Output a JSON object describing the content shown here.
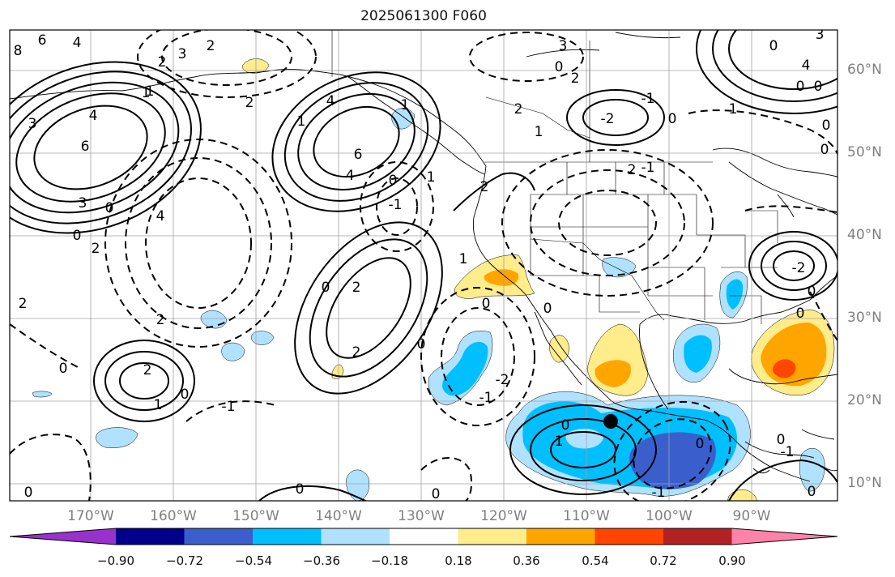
{
  "map": {
    "title": "2025061300 F060",
    "lon_labels": [
      "170°W",
      "160°W",
      "150°W",
      "140°W",
      "130°W",
      "120°W",
      "110°W",
      "100°W",
      "90°W"
    ],
    "lat_labels": [
      "60°N",
      "50°N",
      "40°N",
      "30°N",
      "20°N",
      "10°N"
    ],
    "marker": {
      "label": "",
      "color": "#000000"
    }
  },
  "colorbar": {
    "labels": [
      "−0.90",
      "−0.72",
      "−0.54",
      "−0.36",
      "−0.18",
      "0.18",
      "0.36",
      "0.54",
      "0.72",
      "0.90"
    ],
    "colors": [
      "#9932cc",
      "#00008b",
      "#3a5fcd",
      "#00bfff",
      "#b0e2ff",
      "#ffffff",
      "#ffec8b",
      "#ffa500",
      "#ff4500",
      "#b22222",
      "#ff82ab"
    ]
  },
  "contour_labels": [
    "8",
    "6",
    "4",
    "4",
    "3",
    "3",
    "2",
    "2",
    "1",
    "6",
    "4",
    "3",
    "6",
    "0",
    "0",
    "2",
    "1",
    "-1",
    "1",
    "2",
    "1",
    "4",
    "2",
    "0",
    "4",
    "1",
    "2",
    "0",
    "2",
    "2",
    "2",
    "0",
    "0",
    "2",
    "0",
    "2",
    "1",
    "-1",
    "0",
    "1",
    "-2",
    "-1",
    "0",
    "1",
    "0",
    "0",
    "0",
    "-1",
    "0",
    "0",
    "-1",
    "0",
    "-1",
    "-2",
    "0",
    "3",
    "2",
    "1",
    "0",
    "-1",
    "0",
    "1",
    "0",
    "-2",
    "0",
    "0",
    "0",
    "0",
    "4",
    "0",
    "3",
    "2",
    "0"
  ]
}
